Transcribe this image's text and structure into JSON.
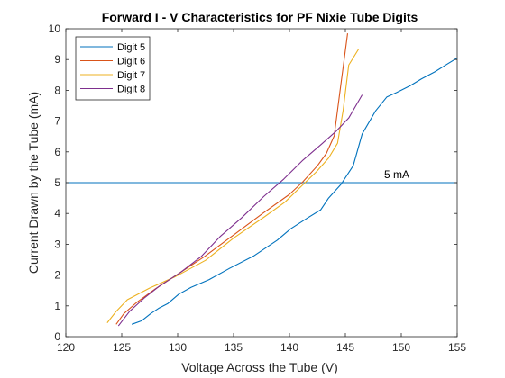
{
  "chart_data": {
    "type": "line",
    "title": "Forward I - V Characteristics for PF Nixie Tube Digits",
    "xlabel": "Voltage Across the Tube (V)",
    "ylabel": "Current Drawn by the Tube (mA)",
    "xlim": [
      120,
      155
    ],
    "ylim": [
      0,
      10
    ],
    "xticks": [
      120,
      125,
      130,
      135,
      140,
      145,
      150,
      155
    ],
    "yticks": [
      0,
      1,
      2,
      3,
      4,
      5,
      6,
      7,
      8,
      9,
      10
    ],
    "grid": false,
    "legend_position": "top-left",
    "series": [
      {
        "name": "Digit 5",
        "color": "#0072BD",
        "x": [
          125.9,
          126.8,
          127.6,
          128.3,
          129.1,
          130.1,
          131.2,
          132.8,
          134.6,
          136.8,
          138.9,
          140.1,
          141.6,
          142.8,
          143.5,
          144.6,
          145.7,
          146.5,
          147.7,
          148.7,
          149.6,
          150.8,
          151.8,
          153.0,
          154.1,
          155.0
        ],
        "y": [
          0.4,
          0.52,
          0.75,
          0.92,
          1.07,
          1.38,
          1.6,
          1.85,
          2.21,
          2.62,
          3.13,
          3.5,
          3.85,
          4.12,
          4.5,
          4.94,
          5.55,
          6.58,
          7.33,
          7.78,
          7.93,
          8.15,
          8.37,
          8.6,
          8.85,
          9.05
        ]
      },
      {
        "name": "Digit 6",
        "color": "#D95319",
        "x": [
          124.5,
          125.2,
          126.3,
          128.0,
          130.1,
          132.4,
          135.0,
          137.6,
          140.0,
          141.2,
          142.5,
          143.3,
          144.0,
          144.6,
          145.2
        ],
        "y": [
          0.4,
          0.75,
          1.1,
          1.55,
          2.05,
          2.6,
          3.3,
          4.0,
          4.62,
          5.03,
          5.55,
          5.95,
          6.52,
          8.2,
          9.85
        ]
      },
      {
        "name": "Digit 7",
        "color": "#EDB120",
        "x": [
          123.7,
          124.5,
          125.5,
          127.5,
          129.8,
          132.5,
          135.0,
          137.8,
          139.6,
          141.0,
          142.4,
          143.5,
          144.3,
          144.8,
          145.3,
          146.2
        ],
        "y": [
          0.45,
          0.82,
          1.2,
          1.58,
          1.95,
          2.48,
          3.2,
          3.9,
          4.37,
          4.86,
          5.35,
          5.8,
          6.28,
          7.35,
          8.82,
          9.35
        ]
      },
      {
        "name": "Digit 8",
        "color": "#7E2F8E",
        "x": [
          124.7,
          125.7,
          127.0,
          128.4,
          130.2,
          132.1,
          133.8,
          135.7,
          137.7,
          139.5,
          141.2,
          142.8,
          144.2,
          145.3,
          146.5
        ],
        "y": [
          0.35,
          0.82,
          1.25,
          1.65,
          2.07,
          2.6,
          3.25,
          3.85,
          4.55,
          5.12,
          5.73,
          6.23,
          6.68,
          7.1,
          7.85
        ]
      }
    ],
    "reference_line": {
      "y": 5,
      "label": "5 mA",
      "color": "#0072BD"
    }
  }
}
